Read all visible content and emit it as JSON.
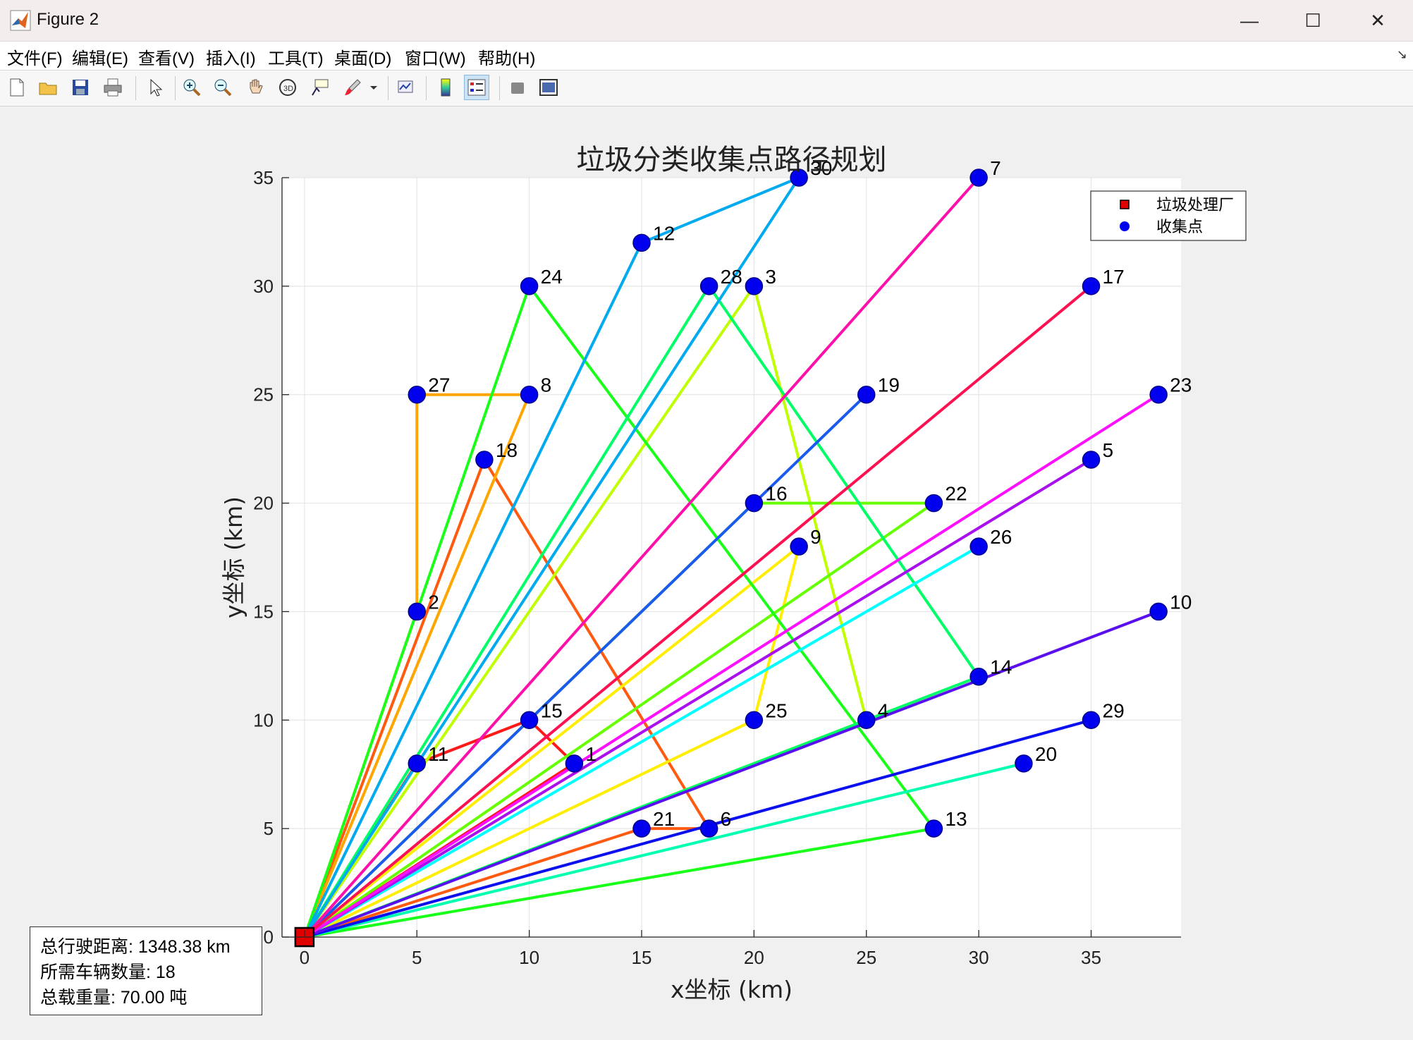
{
  "window": {
    "title": "Figure 2",
    "minimize_symbol": "—",
    "maximize_symbol": "☐",
    "close_symbol": "✕"
  },
  "menu": {
    "items": [
      "文件(F)",
      "编辑(E)",
      "查看(V)",
      "插入(I)",
      "工具(T)",
      "桌面(D)",
      "窗口(W)",
      "帮助(H)"
    ]
  },
  "toolbar": {
    "icons": [
      "new-figure-icon",
      "open-file-icon",
      "save-icon",
      "print-icon",
      "pointer-icon",
      "zoom-in-icon",
      "zoom-out-icon",
      "pan-icon",
      "rotate-3d-icon",
      "data-cursor-icon",
      "brush-icon",
      "link-plot-icon",
      "colorbar-icon",
      "legend-icon",
      "hide-plot-tools-icon",
      "show-plot-tools-icon"
    ]
  },
  "chart_data": {
    "type": "line",
    "title": "垃圾分类收集点路径规划",
    "xlabel": "x坐标 (km)",
    "ylabel": "y坐标 (km)",
    "xlim": [
      -1,
      39
    ],
    "ylim": [
      0,
      35
    ],
    "xticks": [
      0,
      5,
      10,
      15,
      20,
      25,
      30,
      35
    ],
    "yticks": [
      0,
      5,
      10,
      15,
      20,
      25,
      30,
      35
    ],
    "grid": true,
    "legend": {
      "placement": "top-right",
      "entries": [
        {
          "label": "垃圾处理厂",
          "marker": "square",
          "color": "#e00000"
        },
        {
          "label": "收集点",
          "marker": "circle",
          "color": "#0000ee"
        }
      ]
    },
    "depot": {
      "x": 0,
      "y": 0
    },
    "points": [
      {
        "id": "1",
        "x": 12,
        "y": 8
      },
      {
        "id": "2",
        "x": 5,
        "y": 15
      },
      {
        "id": "3",
        "x": 20,
        "y": 30
      },
      {
        "id": "4",
        "x": 25,
        "y": 10
      },
      {
        "id": "5",
        "x": 35,
        "y": 22
      },
      {
        "id": "6",
        "x": 18,
        "y": 5
      },
      {
        "id": "7",
        "x": 30,
        "y": 35
      },
      {
        "id": "8",
        "x": 10,
        "y": 25
      },
      {
        "id": "9",
        "x": 22,
        "y": 18
      },
      {
        "id": "10",
        "x": 38,
        "y": 15
      },
      {
        "id": "11",
        "x": 5,
        "y": 8
      },
      {
        "id": "12",
        "x": 15,
        "y": 32
      },
      {
        "id": "13",
        "x": 28,
        "y": 5
      },
      {
        "id": "14",
        "x": 30,
        "y": 12
      },
      {
        "id": "15",
        "x": 10,
        "y": 10
      },
      {
        "id": "16",
        "x": 20,
        "y": 20
      },
      {
        "id": "17",
        "x": 35,
        "y": 30
      },
      {
        "id": "18",
        "x": 8,
        "y": 22
      },
      {
        "id": "19",
        "x": 25,
        "y": 25
      },
      {
        "id": "20",
        "x": 32,
        "y": 8
      },
      {
        "id": "21",
        "x": 15,
        "y": 5
      },
      {
        "id": "22",
        "x": 28,
        "y": 20
      },
      {
        "id": "23",
        "x": 38,
        "y": 25
      },
      {
        "id": "24",
        "x": 10,
        "y": 30
      },
      {
        "id": "25",
        "x": 20,
        "y": 10
      },
      {
        "id": "26",
        "x": 30,
        "y": 18
      },
      {
        "id": "27",
        "x": 5,
        "y": 25
      },
      {
        "id": "28",
        "x": 18,
        "y": 30
      },
      {
        "id": "29",
        "x": 35,
        "y": 10
      },
      {
        "id": "30",
        "x": 22,
        "y": 35
      }
    ],
    "routes": [
      {
        "color": "#ff1a1a",
        "stops": [
          "11",
          "15",
          "1"
        ]
      },
      {
        "color": "#ff5a10",
        "stops": [
          "18",
          "6",
          "21"
        ]
      },
      {
        "color": "#ffa500",
        "stops": [
          "8",
          "27",
          "2"
        ]
      },
      {
        "color": "#ffee00",
        "stops": [
          "25",
          "9"
        ]
      },
      {
        "color": "#bfff00",
        "stops": [
          "3",
          "4"
        ]
      },
      {
        "color": "#66ff00",
        "stops": [
          "22",
          "16"
        ]
      },
      {
        "color": "#1aff1a",
        "stops": [
          "13",
          "24"
        ]
      },
      {
        "color": "#00ff66",
        "stops": [
          "14",
          "28"
        ]
      },
      {
        "color": "#00ffb0",
        "stops": [
          "20"
        ]
      },
      {
        "color": "#00ffff",
        "stops": [
          "26"
        ]
      },
      {
        "color": "#00aaee",
        "stops": [
          "30",
          "12"
        ]
      },
      {
        "color": "#1a5aee",
        "stops": [
          "19"
        ]
      },
      {
        "color": "#0a10ee",
        "stops": [
          "29"
        ]
      },
      {
        "color": "#5a10ee",
        "stops": [
          "10"
        ]
      },
      {
        "color": "#aa10ee",
        "stops": [
          "5"
        ]
      },
      {
        "color": "#ff10ff",
        "stops": [
          "23"
        ]
      },
      {
        "color": "#ff10aa",
        "stops": [
          "7"
        ]
      },
      {
        "color": "#ff1050",
        "stops": [
          "17"
        ]
      }
    ]
  },
  "info": {
    "distance": "总行驶距离: 1348.38 km",
    "vehicles": "所需车辆数量: 18",
    "load": "总载重量: 70.00 吨"
  }
}
